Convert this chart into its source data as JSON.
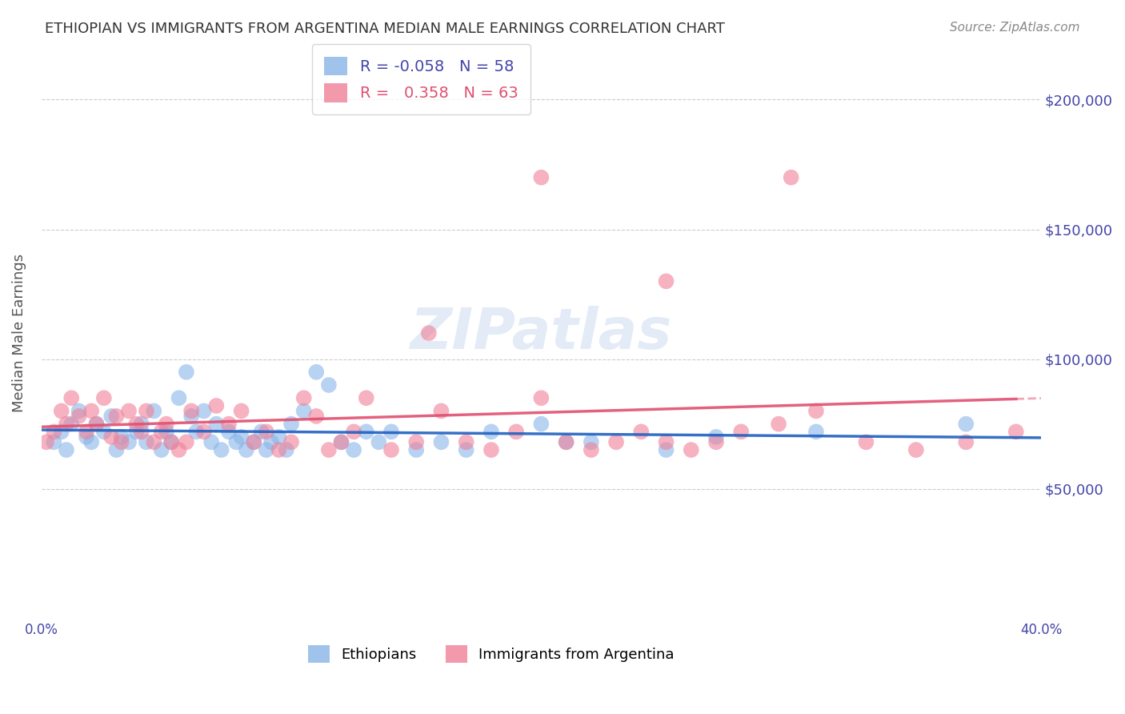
{
  "title": "ETHIOPIAN VS IMMIGRANTS FROM ARGENTINA MEDIAN MALE EARNINGS CORRELATION CHART",
  "source": "Source: ZipAtlas.com",
  "xlabel": "",
  "ylabel": "Median Male Earnings",
  "xlim": [
    0.0,
    0.4
  ],
  "ylim": [
    0,
    220000
  ],
  "yticks": [
    0,
    50000,
    100000,
    150000,
    200000
  ],
  "ytick_labels": [
    "",
    "$50,000",
    "$100,000",
    "$150,000",
    "$200,000"
  ],
  "xticks": [
    0.0,
    0.05,
    0.1,
    0.15,
    0.2,
    0.25,
    0.3,
    0.35,
    0.4
  ],
  "xtick_labels": [
    "0.0%",
    "",
    "",
    "",
    "",
    "",
    "",
    "",
    "40.0%"
  ],
  "legend_entries": [
    {
      "label": "R = -0.058   N = 58",
      "color": "#a8c8f0"
    },
    {
      "label": "R =   0.358   N = 63",
      "color": "#f0a0b0"
    }
  ],
  "blue_color": "#89b4e8",
  "pink_color": "#f08098",
  "blue_line_color": "#2060c0",
  "pink_line_color": "#e05070",
  "watermark": "ZIPatlas",
  "title_color": "#333333",
  "axis_color": "#4444aa",
  "background_color": "#ffffff",
  "ethiopians_x": [
    0.005,
    0.008,
    0.01,
    0.012,
    0.015,
    0.018,
    0.02,
    0.022,
    0.025,
    0.028,
    0.03,
    0.032,
    0.035,
    0.038,
    0.04,
    0.042,
    0.045,
    0.048,
    0.05,
    0.052,
    0.055,
    0.058,
    0.06,
    0.062,
    0.065,
    0.068,
    0.07,
    0.072,
    0.075,
    0.078,
    0.08,
    0.082,
    0.085,
    0.088,
    0.09,
    0.092,
    0.095,
    0.098,
    0.1,
    0.105,
    0.11,
    0.115,
    0.12,
    0.125,
    0.13,
    0.135,
    0.14,
    0.15,
    0.16,
    0.17,
    0.18,
    0.2,
    0.21,
    0.22,
    0.25,
    0.27,
    0.31,
    0.37
  ],
  "ethiopians_y": [
    68000,
    72000,
    65000,
    75000,
    80000,
    70000,
    68000,
    75000,
    72000,
    78000,
    65000,
    70000,
    68000,
    72000,
    75000,
    68000,
    80000,
    65000,
    72000,
    68000,
    85000,
    95000,
    78000,
    72000,
    80000,
    68000,
    75000,
    65000,
    72000,
    68000,
    70000,
    65000,
    68000,
    72000,
    65000,
    68000,
    70000,
    65000,
    75000,
    80000,
    95000,
    90000,
    68000,
    65000,
    72000,
    68000,
    72000,
    65000,
    68000,
    65000,
    72000,
    75000,
    68000,
    68000,
    65000,
    70000,
    72000,
    75000
  ],
  "argentina_x": [
    0.002,
    0.005,
    0.008,
    0.01,
    0.012,
    0.015,
    0.018,
    0.02,
    0.022,
    0.025,
    0.028,
    0.03,
    0.032,
    0.035,
    0.038,
    0.04,
    0.042,
    0.045,
    0.048,
    0.05,
    0.052,
    0.055,
    0.058,
    0.06,
    0.065,
    0.07,
    0.075,
    0.08,
    0.085,
    0.09,
    0.095,
    0.1,
    0.105,
    0.11,
    0.115,
    0.12,
    0.125,
    0.13,
    0.14,
    0.15,
    0.155,
    0.16,
    0.17,
    0.18,
    0.19,
    0.2,
    0.21,
    0.22,
    0.23,
    0.24,
    0.25,
    0.26,
    0.27,
    0.28,
    0.295,
    0.31,
    0.33,
    0.35,
    0.37,
    0.39,
    0.2,
    0.25,
    0.3
  ],
  "argentina_y": [
    68000,
    72000,
    80000,
    75000,
    85000,
    78000,
    72000,
    80000,
    75000,
    85000,
    70000,
    78000,
    68000,
    80000,
    75000,
    72000,
    80000,
    68000,
    72000,
    75000,
    68000,
    65000,
    68000,
    80000,
    72000,
    82000,
    75000,
    80000,
    68000,
    72000,
    65000,
    68000,
    85000,
    78000,
    65000,
    68000,
    72000,
    85000,
    65000,
    68000,
    110000,
    80000,
    68000,
    65000,
    72000,
    85000,
    68000,
    65000,
    68000,
    72000,
    68000,
    65000,
    68000,
    72000,
    75000,
    80000,
    68000,
    65000,
    68000,
    72000,
    170000,
    130000,
    170000
  ]
}
